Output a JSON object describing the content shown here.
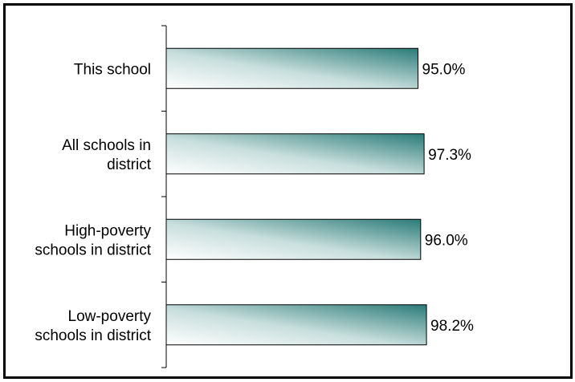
{
  "chart_data": {
    "type": "bar",
    "orientation": "horizontal",
    "categories": [
      [
        "This school"
      ],
      [
        "All schools in",
        "district"
      ],
      [
        "High-poverty",
        "schools in district"
      ],
      [
        "Low-poverty",
        "schools in district"
      ]
    ],
    "values": [
      95.0,
      97.3,
      96.0,
      98.2
    ],
    "value_labels": [
      "95.0%",
      "97.3%",
      "96.0%",
      "98.2%"
    ],
    "colors": {
      "bar_light": "#ffffff",
      "bar_dark": "#2a7b78",
      "border": "#000000"
    },
    "grid": false,
    "legend": "none"
  }
}
